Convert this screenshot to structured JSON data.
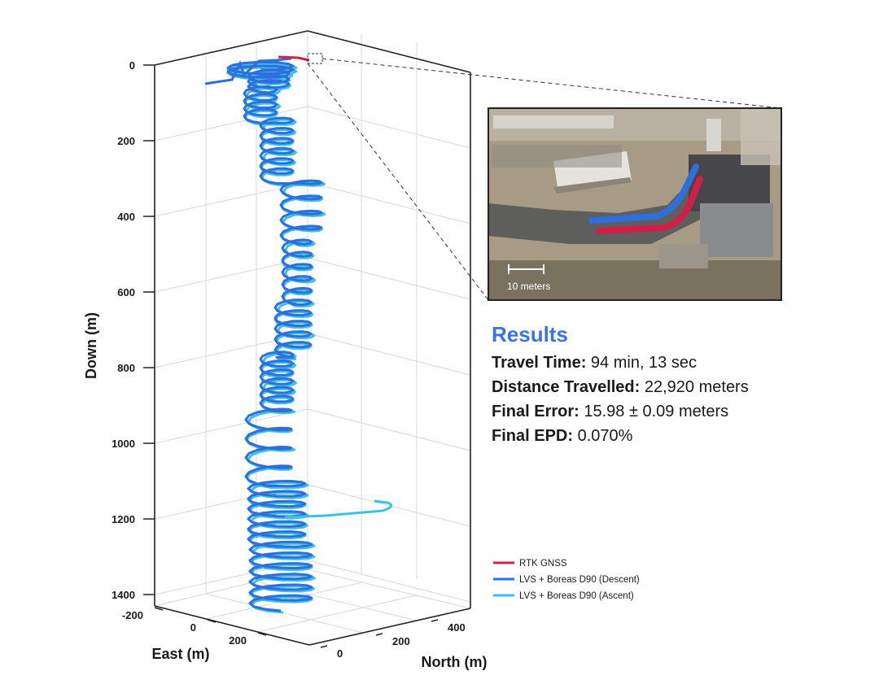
{
  "colors": {
    "rtk": "#d21f4a",
    "descent": "#2f6fdc",
    "ascent": "#39c2e8",
    "accent_title": "#3a73e6",
    "grid": "#d8d8d8",
    "axis": "#222222"
  },
  "chart_data": {
    "type": "line",
    "projection": "3d",
    "xlabel": "East (m)",
    "ylabel": "North (m)",
    "zlabel": "Down (m)",
    "z_ticks": [
      "0",
      "200",
      "400",
      "600",
      "800",
      "1000",
      "1200",
      "1400"
    ],
    "x_ticks": [
      "-200",
      "0",
      "200"
    ],
    "y_ticks": [
      "0",
      "200",
      "400"
    ],
    "zlim": [
      0,
      1400
    ],
    "z_inverted": true,
    "grid": true,
    "legend_position": "bottom-right",
    "series": [
      {
        "name": "RTK GNSS",
        "color_key": "rtk",
        "depth_range": [
          0,
          5
        ]
      },
      {
        "name": "LVS + Boreas D90 (Descent)",
        "color_key": "descent",
        "depth_range": [
          0,
          1430
        ]
      },
      {
        "name": "LVS + Boreas D90 (Ascent)",
        "color_key": "ascent",
        "depth_range": [
          0,
          1430
        ]
      }
    ]
  },
  "inset": {
    "scale_label": "10 meters"
  },
  "results": {
    "title": "Results",
    "rows": [
      {
        "key": "Travel Time:",
        "value": " 94 min, 13 sec"
      },
      {
        "key": "Distance Travelled:",
        "value": " 22,920 meters"
      },
      {
        "key": "Final Error:",
        "value": " 15.98 ± 0.09 meters"
      },
      {
        "key": "Final EPD:",
        "value": " 0.070%"
      }
    ]
  }
}
